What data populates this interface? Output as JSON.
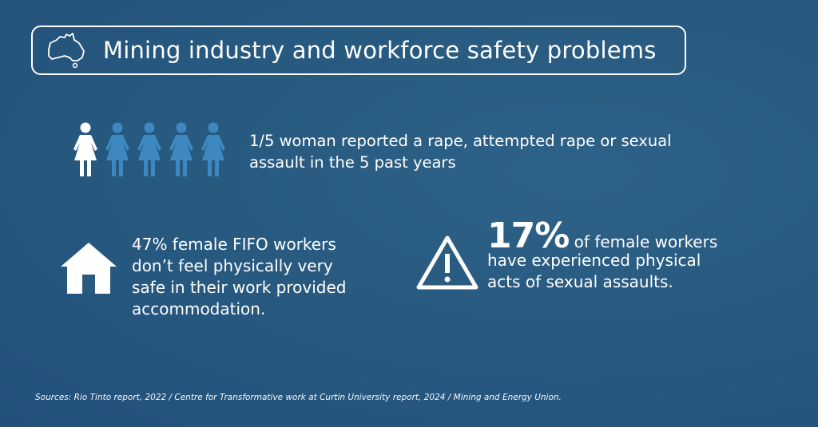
{
  "header": {
    "title": "Mining industry and workforce safety problems",
    "icon": "australia-map-icon"
  },
  "stats": [
    {
      "text_line1": "1/5 woman reported a rape, attempted rape or sexual",
      "text_line2": "assault in the 5 past years",
      "icon": "women-figures-icon",
      "highlight_color": "#ffffff",
      "base_color": "#3d88c0",
      "fraction": 0.2
    },
    {
      "lines": [
        "47% female FIFO workers",
        "don’t feel physically very",
        "safe in their work provided",
        "accommodation."
      ],
      "icon": "house-icon"
    },
    {
      "big": "17%",
      "line1": " of female workers",
      "line2": "have experienced physical",
      "line3": "acts of sexual assaults.",
      "icon": "warning-icon"
    }
  ],
  "sources": "Sources: Rio Tinto report, 2022 / Centre for Transformative work at Curtin University report, 2024 / Mining and Energy Union."
}
